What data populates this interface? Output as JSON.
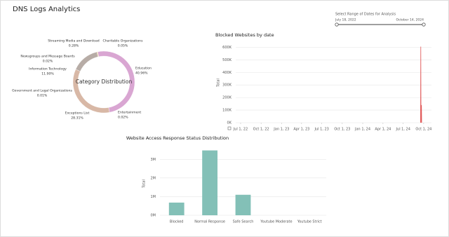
{
  "header": {
    "title": "DNS Logs Analytics"
  },
  "date_filter": {
    "label": "Select Range of Dates for Analysis",
    "start": "July 18, 2022",
    "end": "October 14, 2024"
  },
  "chart_data": [
    {
      "type": "donut",
      "center_label": "Category Distribution",
      "categories": [
        "Education",
        "Entertainment",
        "Exceptions List",
        "Government and Legal Organizations",
        "Information Technology",
        "Newsgroups and Message Boards",
        "Streaming Media and Download",
        "Charitable Organizations"
      ],
      "values": [
        40.96,
        0.02,
        28.31,
        0.01,
        11.9,
        0.02,
        0.28,
        0.05
      ],
      "value_labels": [
        "40.96%",
        "0.02%",
        "28.31%",
        "0.01%",
        "11.90%",
        "0.02%",
        "0.28%",
        "0.05%"
      ],
      "colors": [
        "#d9a6d2",
        "#c9a0a0",
        "#d8b8a6",
        "#9a9a9a",
        "#b7aca6",
        "#5b7fb8",
        "#f0b878",
        "#6aab5e"
      ]
    },
    {
      "type": "line",
      "title": "Blocked Websites by date",
      "y_label": "Total",
      "x": [
        "2024-09-17",
        "2024-09-18",
        "2024-09-19",
        "2024-09-21",
        "2024-09-22"
      ],
      "series": [
        {
          "name": "Blocked",
          "color": "#e05555",
          "values": [
            0,
            605000,
            0,
            140000,
            0
          ]
        }
      ],
      "xlim": [
        "2022-06-09",
        "2024-11-05"
      ],
      "xticks": [
        {
          "value": "2022-07-01",
          "label": "Jul 1, 22"
        },
        {
          "value": "2022-10-01",
          "label": "Oct 1, 22"
        },
        {
          "value": "2023-01-01",
          "label": "Jan 1, 23"
        },
        {
          "value": "2023-04-01",
          "label": "Apr 1, 23"
        },
        {
          "value": "2023-07-01",
          "label": "Jul 1, 23"
        },
        {
          "value": "2023-10-01",
          "label": "Oct 1, 23"
        },
        {
          "value": "2024-01-01",
          "label": "Jan 1, 24"
        },
        {
          "value": "2024-04-01",
          "label": "Apr 1, 24"
        },
        {
          "value": "2024-07-01",
          "label": "Jul 1, 24"
        },
        {
          "value": "2024-10-01",
          "label": "Oct 1, 24"
        }
      ],
      "ylim": [
        0,
        630000
      ],
      "yticks": [
        {
          "value": 0,
          "label": "0K"
        },
        {
          "value": 100000,
          "label": "100K"
        },
        {
          "value": 200000,
          "label": "200K"
        },
        {
          "value": 300000,
          "label": "300K"
        },
        {
          "value": 400000,
          "label": "400K"
        },
        {
          "value": 500000,
          "label": "500K"
        },
        {
          "value": 600000,
          "label": "600K"
        }
      ],
      "grid": true
    },
    {
      "type": "bar",
      "title": "Website Access Response Status Distribution",
      "y_label": "Total",
      "categories": [
        "Blocked",
        "Normal Response",
        "Safe Search",
        "Youtube Moderate",
        "Youtube Strict"
      ],
      "values": [
        680000,
        3480000,
        1100000,
        0,
        0
      ],
      "color": "#83c0b7",
      "ylim": [
        0,
        3500000
      ],
      "yticks": [
        {
          "value": 0,
          "label": "0M"
        },
        {
          "value": 1000000,
          "label": "1M"
        },
        {
          "value": 2000000,
          "label": "2M"
        },
        {
          "value": 3000000,
          "label": "3M"
        }
      ],
      "grid": true
    }
  ]
}
